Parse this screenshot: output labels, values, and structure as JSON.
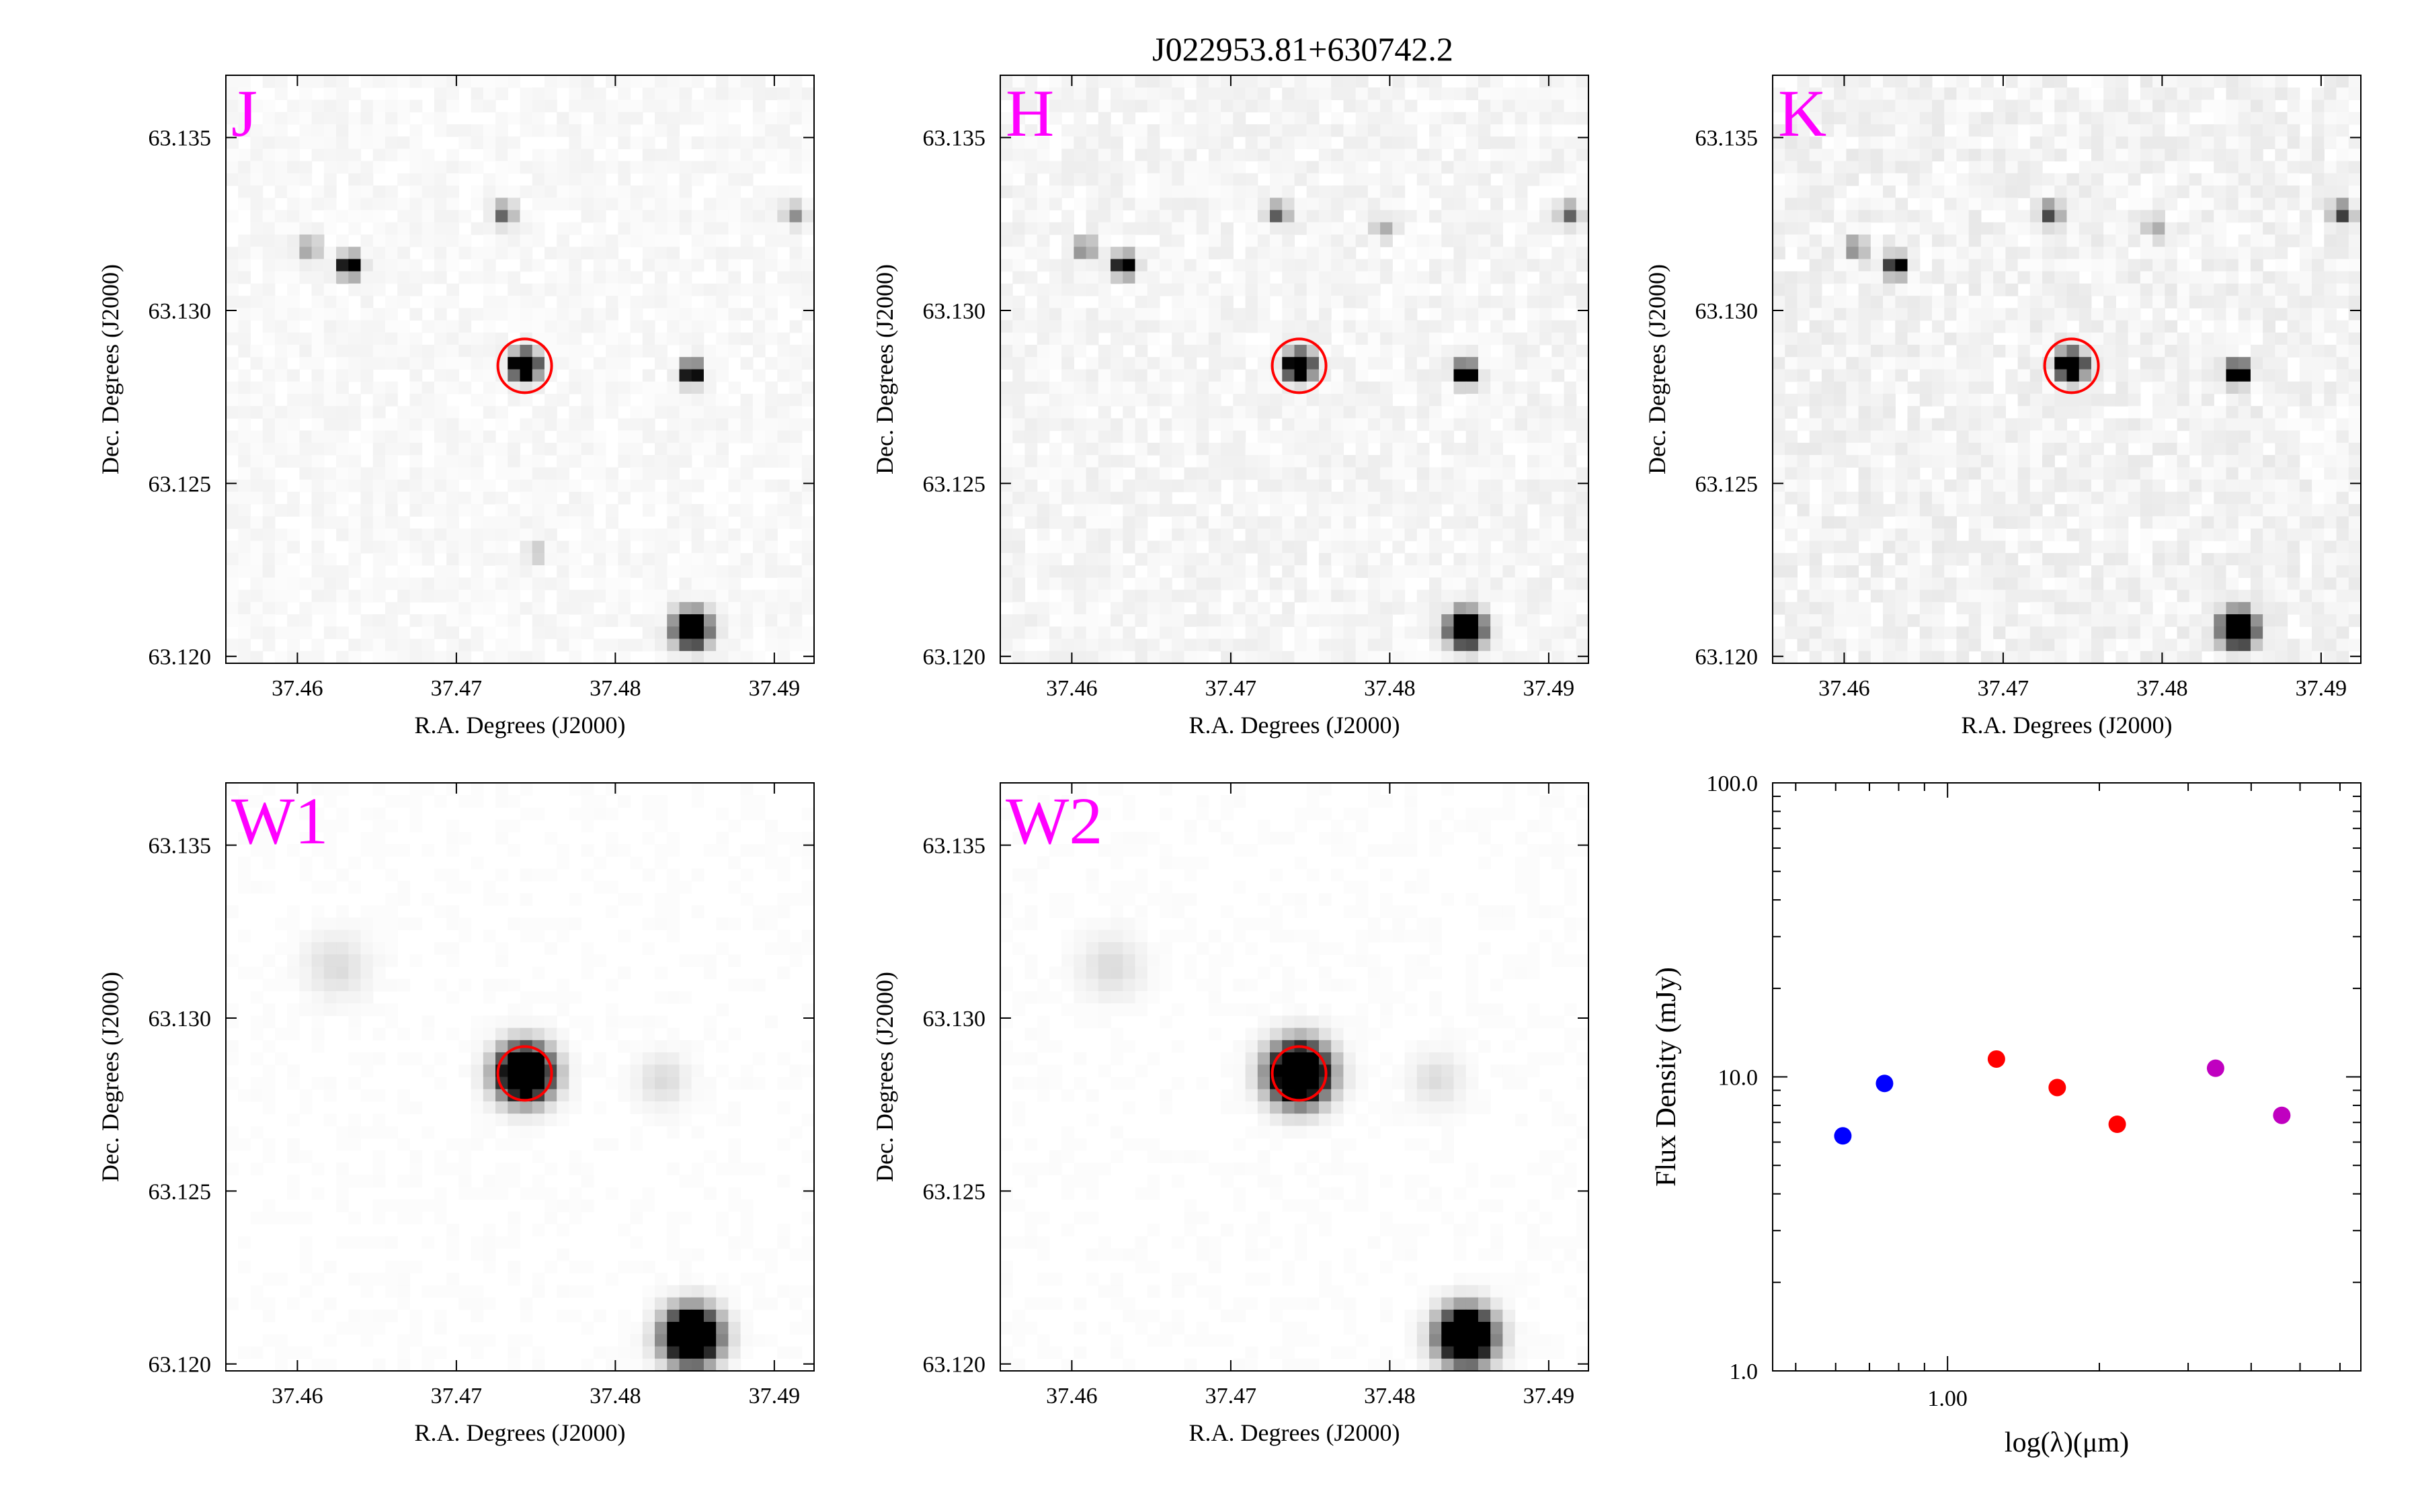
{
  "title": "J022953.81+630742.2",
  "colors": {
    "band_label": "#ff00ff",
    "source_circle": "#ff0000",
    "nir_points": "#0000ff",
    "mid_points": "#ff0000",
    "wise_points": "#c000c0"
  },
  "cutout_axes": {
    "xlabel": "R.A. Degrees (J2000)",
    "ylabel": "Dec. Degrees (J2000)",
    "xlim": [
      37.4555,
      37.4925
    ],
    "ylim": [
      63.1198,
      63.1368
    ],
    "x_ticks": [
      37.46,
      37.47,
      37.48,
      37.49
    ],
    "x_tick_labels": [
      "37.46",
      "37.47",
      "37.48",
      "37.49"
    ],
    "y_ticks": [
      63.12,
      63.125,
      63.13,
      63.135
    ],
    "y_tick_labels": [
      "63.120",
      "63.125",
      "63.130",
      "63.135"
    ],
    "target": {
      "ra": 37.4743,
      "dec": 63.1284
    }
  },
  "cutouts": [
    {
      "band": "J",
      "psf": "sharp",
      "noise": 0.05,
      "sources": [
        {
          "ra": 37.4743,
          "dec": 63.1284,
          "peak": 1.0,
          "size": 1.0
        },
        {
          "ra": 37.4848,
          "dec": 63.1208,
          "peak": 1.0,
          "size": 1.25
        },
        {
          "ra": 37.4848,
          "dec": 63.1282,
          "peak": 0.65,
          "size": 0.8
        },
        {
          "ra": 37.4633,
          "dec": 63.1313,
          "peak": 0.7,
          "size": 0.8
        },
        {
          "ra": 37.4608,
          "dec": 63.1318,
          "peak": 0.2,
          "size": 0.8
        },
        {
          "ra": 37.473,
          "dec": 63.1328,
          "peak": 0.3,
          "size": 0.8
        },
        {
          "ra": 37.4913,
          "dec": 63.1328,
          "peak": 0.2,
          "size": 0.8
        },
        {
          "ra": 37.475,
          "dec": 63.123,
          "peak": 0.1,
          "size": 0.8
        }
      ]
    },
    {
      "band": "H",
      "psf": "sharp",
      "noise": 0.07,
      "sources": [
        {
          "ra": 37.4743,
          "dec": 63.1284,
          "peak": 1.0,
          "size": 1.0
        },
        {
          "ra": 37.4848,
          "dec": 63.1208,
          "peak": 1.0,
          "size": 1.25
        },
        {
          "ra": 37.4848,
          "dec": 63.1282,
          "peak": 0.7,
          "size": 0.8
        },
        {
          "ra": 37.4633,
          "dec": 63.1313,
          "peak": 0.65,
          "size": 0.8
        },
        {
          "ra": 37.4608,
          "dec": 63.1318,
          "peak": 0.25,
          "size": 0.8
        },
        {
          "ra": 37.473,
          "dec": 63.1328,
          "peak": 0.3,
          "size": 0.8
        },
        {
          "ra": 37.4913,
          "dec": 63.1328,
          "peak": 0.3,
          "size": 0.8
        },
        {
          "ra": 37.4796,
          "dec": 63.1324,
          "peak": 0.15,
          "size": 0.8
        }
      ]
    },
    {
      "band": "K",
      "psf": "sharp",
      "noise": 0.09,
      "sources": [
        {
          "ra": 37.4743,
          "dec": 63.1284,
          "peak": 1.0,
          "size": 1.0
        },
        {
          "ra": 37.4848,
          "dec": 63.1208,
          "peak": 1.0,
          "size": 1.25
        },
        {
          "ra": 37.4848,
          "dec": 63.1282,
          "peak": 0.75,
          "size": 0.8
        },
        {
          "ra": 37.4633,
          "dec": 63.1313,
          "peak": 0.55,
          "size": 0.8
        },
        {
          "ra": 37.4608,
          "dec": 63.1318,
          "peak": 0.25,
          "size": 0.8
        },
        {
          "ra": 37.473,
          "dec": 63.1328,
          "peak": 0.35,
          "size": 0.8
        },
        {
          "ra": 37.4913,
          "dec": 63.1328,
          "peak": 0.35,
          "size": 0.8
        },
        {
          "ra": 37.4796,
          "dec": 63.1324,
          "peak": 0.15,
          "size": 0.8
        }
      ]
    },
    {
      "band": "W1",
      "psf": "broad",
      "noise": 0.015,
      "sources": [
        {
          "ra": 37.4743,
          "dec": 63.1284,
          "peak": 1.0,
          "size": 1.0
        },
        {
          "ra": 37.4848,
          "dec": 63.1208,
          "peak": 1.0,
          "size": 1.0
        },
        {
          "ra": 37.4625,
          "dec": 63.1315,
          "peak": 0.06,
          "size": 1.2
        },
        {
          "ra": 37.483,
          "dec": 63.1282,
          "peak": 0.06,
          "size": 1.0
        }
      ]
    },
    {
      "band": "W2",
      "psf": "broad",
      "noise": 0.015,
      "sources": [
        {
          "ra": 37.4743,
          "dec": 63.1284,
          "peak": 1.0,
          "size": 1.1
        },
        {
          "ra": 37.4848,
          "dec": 63.1208,
          "peak": 1.0,
          "size": 1.0
        },
        {
          "ra": 37.4625,
          "dec": 63.1315,
          "peak": 0.06,
          "size": 1.2
        },
        {
          "ra": 37.483,
          "dec": 63.1282,
          "peak": 0.06,
          "size": 1.0
        }
      ]
    }
  ],
  "chart_data": {
    "type": "scatter",
    "xlabel": "log(λ)(μm)",
    "ylabel": "Flux Density (mJy)",
    "xscale": "log",
    "yscale": "log",
    "xlim": [
      0.45,
      6.6
    ],
    "ylim": [
      1.0,
      100.0
    ],
    "x_ticks": [
      1.0
    ],
    "x_tick_labels": [
      "1.00"
    ],
    "y_ticks": [
      1.0,
      10.0,
      100.0
    ],
    "y_tick_labels": [
      "1.0",
      "10.0",
      "100.0"
    ],
    "grid": false,
    "series": [
      {
        "color": "#0000ff",
        "x": [
          0.62,
          0.75
        ],
        "y": [
          6.3,
          9.5
        ]
      },
      {
        "color": "#ff0000",
        "x": [
          1.25,
          1.65,
          2.17
        ],
        "y": [
          11.5,
          9.2,
          6.9
        ]
      },
      {
        "color": "#c000c0",
        "x": [
          3.4,
          4.6
        ],
        "y": [
          10.7,
          7.4
        ]
      }
    ]
  }
}
